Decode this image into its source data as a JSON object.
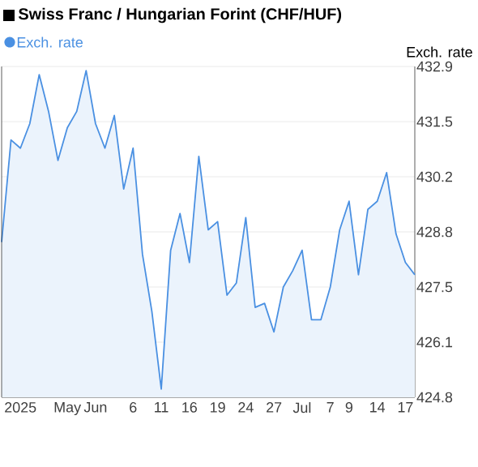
{
  "chart_data": {
    "type": "area",
    "title": "Swiss Franc / Hungarian Forint (CHF/HUF)",
    "ylabel": "Exch. rate",
    "categories": [
      null,
      null,
      "2025",
      null,
      null,
      null,
      null,
      "May",
      null,
      null,
      "Jun",
      null,
      null,
      null,
      "6",
      null,
      null,
      "11",
      null,
      null,
      "16",
      null,
      null,
      "19",
      null,
      null,
      "24",
      null,
      null,
      "27",
      null,
      null,
      "Jul",
      null,
      null,
      "7",
      null,
      "9",
      null,
      null,
      "14",
      null,
      null,
      "17",
      null
    ],
    "series": [
      {
        "name": "Exch. rate",
        "color": "#4a90e2",
        "values": [
          428.6,
          431.1,
          430.9,
          431.5,
          432.7,
          431.8,
          430.6,
          431.4,
          431.8,
          432.8,
          431.5,
          430.9,
          431.7,
          429.9,
          430.9,
          428.3,
          426.9,
          425.0,
          428.4,
          429.3,
          428.1,
          430.7,
          428.9,
          429.1,
          427.3,
          427.6,
          429.2,
          427.0,
          427.1,
          426.4,
          427.5,
          427.9,
          428.4,
          426.7,
          426.7,
          427.5,
          428.9,
          429.6,
          427.8,
          429.4,
          429.6,
          430.3,
          428.8,
          428.1,
          427.8
        ]
      }
    ],
    "ylim": [
      424.8,
      432.9
    ],
    "yticks": [
      432.9,
      {
        "value": 431.55,
        "label": "431.5"
      },
      430.2,
      {
        "value": 428.85,
        "label": "428.8"
      },
      427.5,
      {
        "value": 426.15,
        "label": "426.1"
      },
      424.8
    ],
    "grid": "y",
    "legend": "top left"
  }
}
